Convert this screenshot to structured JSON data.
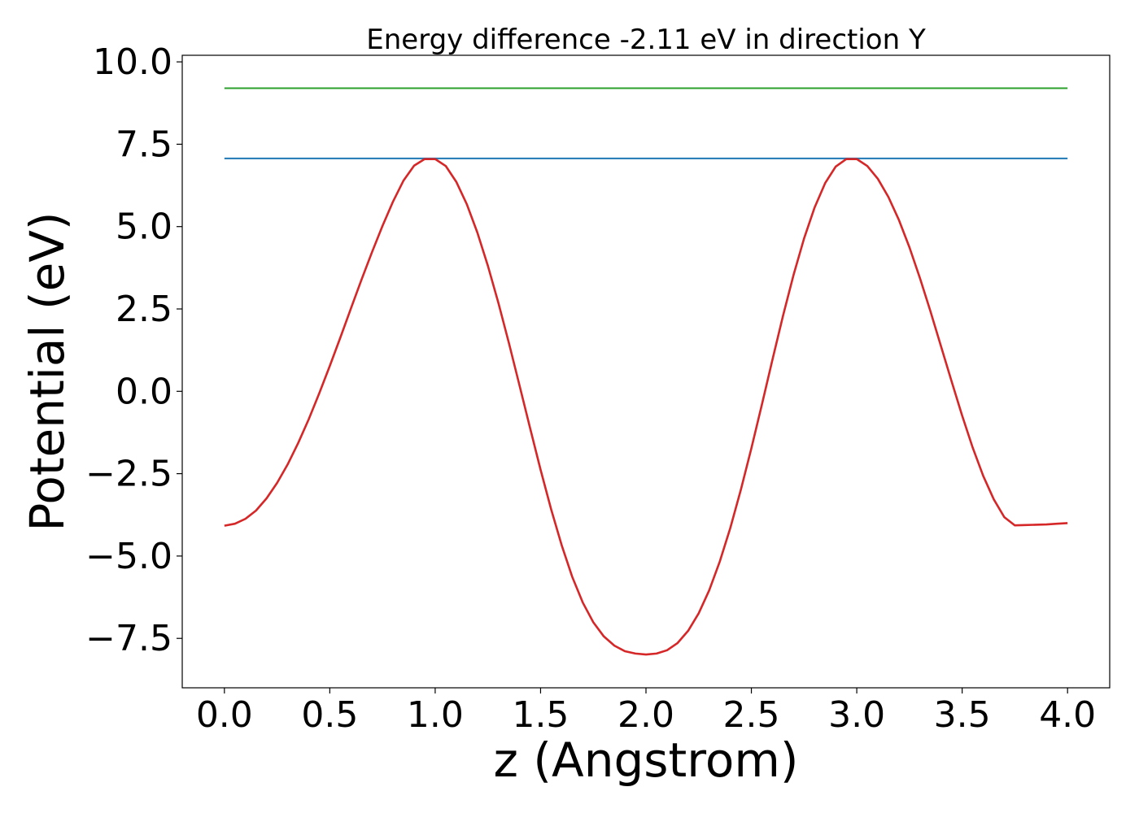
{
  "chart_data": {
    "type": "line",
    "title": "Energy difference -2.11 eV in direction Y",
    "xlabel": "z (Angstrom)",
    "ylabel": "Potential (eV)",
    "xlim": [
      -0.2,
      4.2
    ],
    "ylim": [
      -9.0,
      10.2
    ],
    "xticks": [
      0.0,
      0.5,
      1.0,
      1.5,
      2.0,
      2.5,
      3.0,
      3.5,
      4.0
    ],
    "xtick_labels": [
      "0.0",
      "0.5",
      "1.0",
      "1.5",
      "2.0",
      "2.5",
      "3.0",
      "3.5",
      "4.0"
    ],
    "yticks": [
      -7.5,
      -5.0,
      -2.5,
      0.0,
      2.5,
      5.0,
      7.5,
      10.0
    ],
    "ytick_labels": [
      "−7.5",
      "−5.0",
      "−2.5",
      "0.0",
      "2.5",
      "5.0",
      "7.5",
      "10.0"
    ],
    "grid": false,
    "series": [
      {
        "color": "#2ca02c",
        "x": [
          0.0,
          4.0
        ],
        "y": [
          9.2,
          9.2
        ]
      },
      {
        "color": "#1f77b4",
        "x": [
          0.0,
          4.0
        ],
        "y": [
          7.07,
          7.07
        ]
      },
      {
        "color": "#d62728",
        "x": [
          0.0,
          0.05,
          0.1,
          0.15,
          0.2,
          0.25,
          0.3,
          0.35,
          0.4,
          0.45,
          0.5,
          0.55,
          0.6,
          0.65,
          0.7,
          0.75,
          0.8,
          0.85,
          0.9,
          0.95,
          1.0,
          1.05,
          1.1,
          1.15,
          1.2,
          1.25,
          1.3,
          1.35,
          1.4,
          1.45,
          1.5,
          1.55,
          1.6,
          1.65,
          1.7,
          1.75,
          1.8,
          1.85,
          1.9,
          1.95,
          2.0,
          2.05,
          2.1,
          2.15,
          2.2,
          2.25,
          2.3,
          2.35,
          2.4,
          2.45,
          2.5,
          2.55,
          2.6,
          2.65,
          2.7,
          2.75,
          2.8,
          2.85,
          2.9,
          2.95,
          3.0,
          3.05,
          3.1,
          3.15,
          3.2,
          3.25,
          3.3,
          3.35,
          3.4,
          3.45,
          3.5,
          3.55,
          3.6,
          3.65,
          3.7,
          3.75,
          3.8,
          3.85,
          3.9,
          3.95,
          4.0
        ],
        "y": [
          -4.08,
          -4.02,
          -3.87,
          -3.62,
          -3.25,
          -2.78,
          -2.22,
          -1.57,
          -0.85,
          -0.06,
          0.77,
          1.63,
          2.51,
          3.38,
          4.22,
          5.02,
          5.76,
          6.4,
          6.85,
          7.05,
          7.05,
          6.84,
          6.36,
          5.68,
          4.82,
          3.81,
          2.68,
          1.46,
          0.18,
          -1.11,
          -2.38,
          -3.58,
          -4.67,
          -5.63,
          -6.41,
          -7.01,
          -7.44,
          -7.72,
          -7.89,
          -7.96,
          -7.99,
          -7.96,
          -7.86,
          -7.64,
          -7.27,
          -6.74,
          -6.04,
          -5.17,
          -4.15,
          -2.99,
          -1.73,
          -0.4,
          0.96,
          2.29,
          3.53,
          4.64,
          5.58,
          6.32,
          6.82,
          7.05,
          7.05,
          6.84,
          6.45,
          5.9,
          5.2,
          4.37,
          3.43,
          2.42,
          1.36,
          0.3,
          -0.74,
          -1.71,
          -2.57,
          -3.28,
          -3.82,
          -4.07,
          -4.06,
          -4.05,
          -4.04,
          -4.02,
          -4.0
        ]
      }
    ]
  }
}
